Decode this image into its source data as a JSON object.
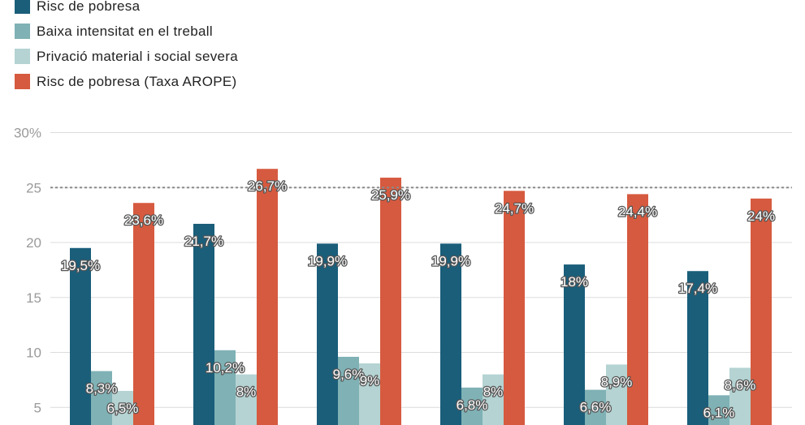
{
  "chart_data": {
    "type": "bar",
    "title": "",
    "xlabel": "",
    "ylabel": "",
    "ylim": [
      0,
      30
    ],
    "y_ticks": [
      "5",
      "10",
      "15",
      "20",
      "25",
      "30%"
    ],
    "y_tick_values": [
      5,
      10,
      15,
      20,
      25,
      30
    ],
    "grid": true,
    "legend_position": "top-left",
    "reference_line": 25,
    "categories": [
      "",
      "",
      "",
      "",
      "",
      ""
    ],
    "series": [
      {
        "name": "Risc de pobresa",
        "color": "#1a5e7a",
        "values": [
          19.5,
          21.7,
          19.9,
          19.9,
          18.0,
          17.4
        ],
        "labels": [
          "19,5%",
          "21,7%",
          "19,9%",
          "19,9%",
          "18%",
          "17,4%"
        ]
      },
      {
        "name": "Baixa intensitat en el treball",
        "color": "#7fb1b5",
        "values": [
          8.3,
          10.2,
          9.6,
          6.8,
          6.6,
          6.1
        ],
        "labels": [
          "8,3%",
          "10,2%",
          "9,6%",
          "6,8%",
          "6,6%",
          "6,1%"
        ]
      },
      {
        "name": "Privació material i social severa",
        "color": "#b4d3d2",
        "values": [
          6.5,
          8.0,
          9.0,
          8.0,
          8.9,
          8.6
        ],
        "labels": [
          "6,5%",
          "8%",
          "9%",
          "8%",
          "8,9%",
          "8,6%"
        ]
      },
      {
        "name": "Risc de pobresa (Taxa AROPE)",
        "color": "#d65a3f",
        "values": [
          23.6,
          26.7,
          25.9,
          24.7,
          24.4,
          24.0
        ],
        "labels": [
          "23,6%",
          "26,7%",
          "25,9%",
          "24,7%",
          "24,4%",
          "24%"
        ]
      }
    ]
  }
}
